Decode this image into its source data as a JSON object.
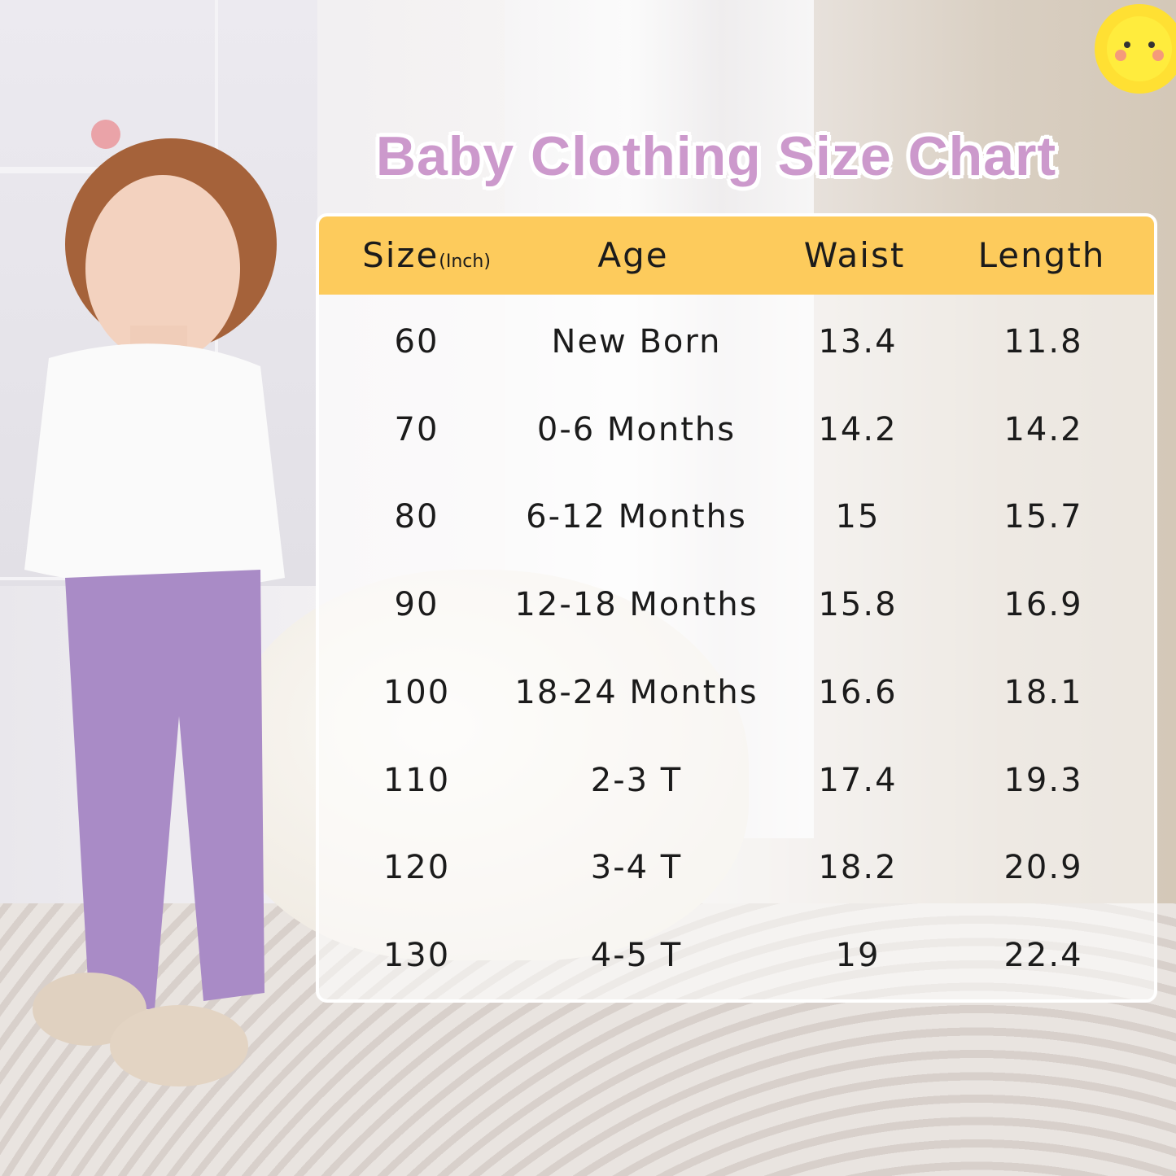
{
  "title": "Baby Clothing Size Chart",
  "table": {
    "header_bg": "#fdcb5c",
    "title_color": "#cc99cc",
    "columns": [
      {
        "label": "Size",
        "unit": "(Inch)"
      },
      {
        "label": "Age"
      },
      {
        "label": "Waist"
      },
      {
        "label": "Length"
      }
    ],
    "rows": [
      {
        "size": "60",
        "age": "New Born",
        "waist": "13.4",
        "length": "11.8"
      },
      {
        "size": "70",
        "age": "0-6 Months",
        "waist": "14.2",
        "length": "14.2"
      },
      {
        "size": "80",
        "age": "6-12 Months",
        "waist": "15",
        "length": "15.7"
      },
      {
        "size": "90",
        "age": "12-18 Months",
        "waist": "15.8",
        "length": "16.9"
      },
      {
        "size": "100",
        "age": "18-24 Months",
        "waist": "16.6",
        "length": "18.1"
      },
      {
        "size": "110",
        "age": "2-3 T",
        "waist": "17.4",
        "length": "19.3"
      },
      {
        "size": "120",
        "age": "3-4 T",
        "waist": "18.2",
        "length": "20.9"
      },
      {
        "size": "130",
        "age": "4-5 T",
        "waist": "19",
        "length": "22.4"
      }
    ]
  }
}
